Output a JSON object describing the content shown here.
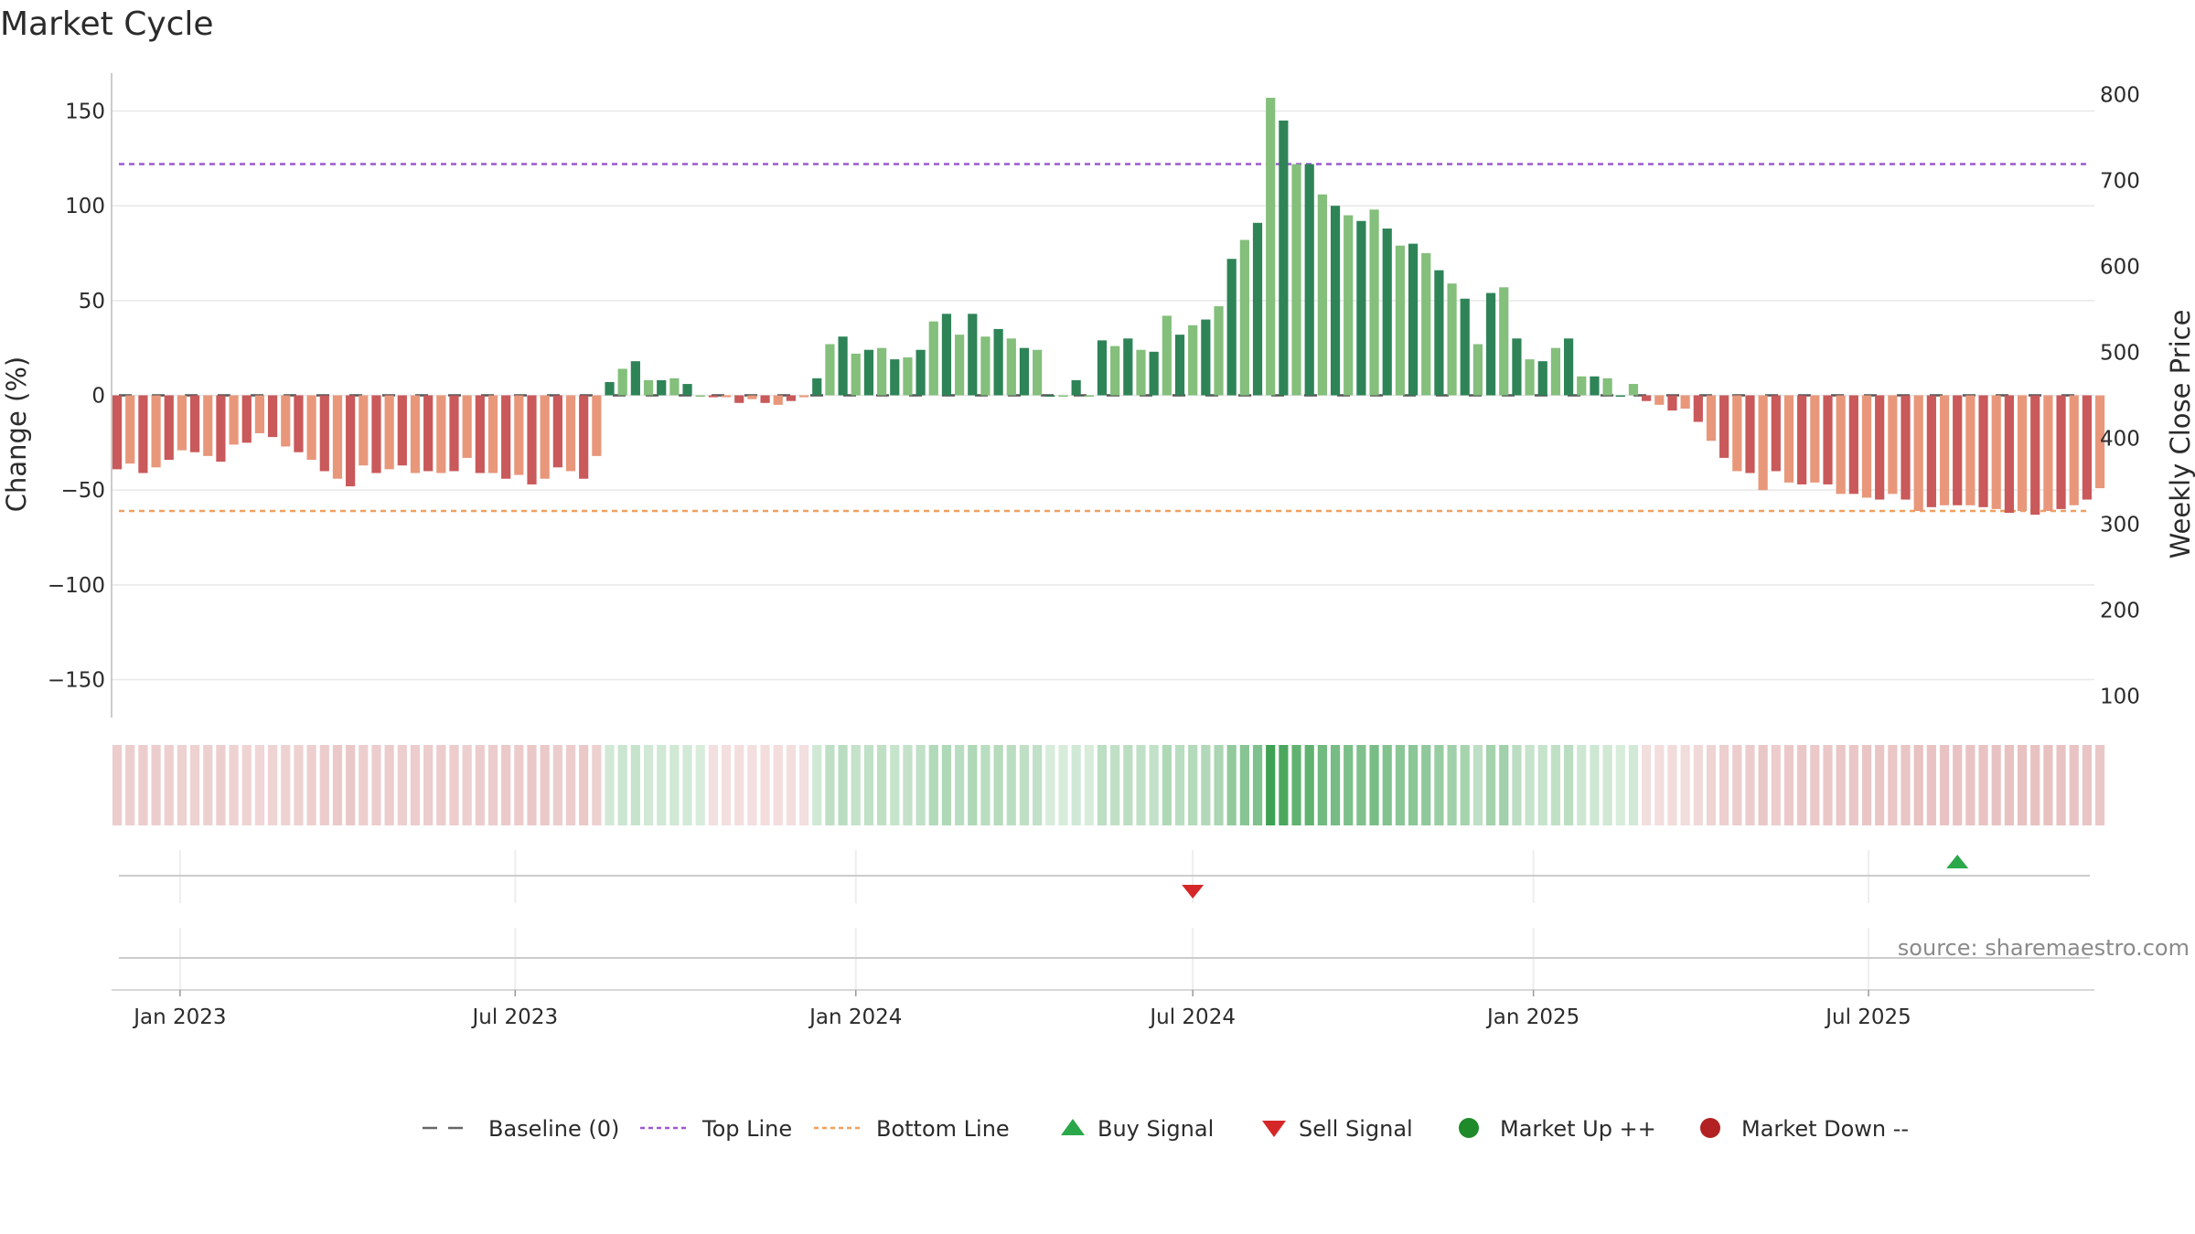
{
  "title": "Market Cycle",
  "source_text": "source: sharemaestro.com",
  "chart_data": {
    "type": "bar",
    "title": "Market Cycle",
    "ylabel": "Change (%)",
    "y2label": "Weekly Close Price",
    "ylim": [
      -170,
      170
    ],
    "y2lim": [
      75,
      825
    ],
    "yticks": [
      150,
      100,
      50,
      0,
      -50,
      -100,
      -150
    ],
    "ytick_labels": [
      "150",
      "100",
      "50",
      "0",
      "−50",
      "−100",
      "−150"
    ],
    "y2ticks": [
      800,
      700,
      600,
      500,
      400,
      300,
      200,
      100
    ],
    "x_start": "2022-11-28",
    "x_range": [
      "2022-11-25",
      "2025-10-31"
    ],
    "xticks": [
      "2023-01-01",
      "2023-07-01",
      "2024-01-01",
      "2024-07-01",
      "2025-01-01",
      "2025-07-01"
    ],
    "xtick_labels": [
      "Jan 2023",
      "Jul 2023",
      "Jan 2024",
      "Jul 2024",
      "Jan 2025",
      "Jul 2025"
    ],
    "grid": true,
    "top_line": 122,
    "bottom_line": -61,
    "baseline": 0,
    "values": [
      -39,
      -36,
      -41,
      -38,
      -34,
      -29,
      -30,
      -32,
      -35,
      -26,
      -25,
      -20,
      -22,
      -27,
      -30,
      -34,
      -40,
      -44,
      -48,
      -37,
      -41,
      -39,
      -37,
      -41,
      -40,
      -41,
      -40,
      -33,
      -41,
      -41,
      -44,
      -42,
      -47,
      -44,
      -38,
      -40,
      -44,
      -32,
      7,
      14,
      18,
      8,
      8,
      9,
      6,
      0,
      -1,
      -1,
      -4,
      -2,
      -4,
      -5,
      -3,
      -1,
      9,
      27,
      31,
      22,
      24,
      25,
      19,
      20,
      24,
      39,
      43,
      32,
      43,
      31,
      35,
      30,
      25,
      24,
      0,
      0,
      8,
      0,
      29,
      26,
      30,
      24,
      23,
      42,
      32,
      37,
      40,
      47,
      72,
      82,
      91,
      157,
      145,
      122,
      122,
      106,
      100,
      95,
      92,
      98,
      88,
      79,
      80,
      75,
      66,
      59,
      51,
      27,
      54,
      57,
      30,
      19,
      18,
      25,
      30,
      10,
      10,
      9,
      0,
      6,
      -3,
      -5,
      -8,
      -7,
      -14,
      -24,
      -33,
      -40,
      -41,
      -50,
      -40,
      -46,
      -47,
      -46,
      -47,
      -52,
      -52,
      -54,
      -55,
      -52,
      -55,
      -61,
      -59,
      -58,
      -58,
      -58,
      -59,
      -60,
      -62,
      -61,
      -63,
      -61,
      -60,
      -58,
      -55,
      -49
    ],
    "signals": [
      {
        "type": "sell",
        "date": "2024-07-01"
      },
      {
        "type": "buy",
        "date": "2025-08-18"
      }
    ],
    "legend": [
      {
        "label": "Baseline (0)",
        "style": "dashed",
        "color": "#666666"
      },
      {
        "label": "Top Line",
        "style": "dotted",
        "color": "#9b59d0"
      },
      {
        "label": "Bottom Line",
        "style": "dotted",
        "color": "#f0a060"
      },
      {
        "label": "Buy Signal",
        "style": "triangle-up",
        "color": "#2aa84a"
      },
      {
        "label": "Sell Signal",
        "style": "triangle-down",
        "color": "#d62728"
      },
      {
        "label": "Market Up ++",
        "style": "circle",
        "color": "#1f8a2a"
      },
      {
        "label": "Market Down --",
        "style": "circle",
        "color": "#b22222"
      }
    ],
    "legend_position": "bottom"
  },
  "colors": {
    "up_strong": "#2e8457",
    "up_light": "#84bf7c",
    "down_strong": "#c9595a",
    "down_light": "#e8977b",
    "top_line": "#9b59d0",
    "bottom_line": "#f0a060",
    "grid": "#e8e8e8",
    "buy": "#2aa84a",
    "sell": "#d62728"
  }
}
